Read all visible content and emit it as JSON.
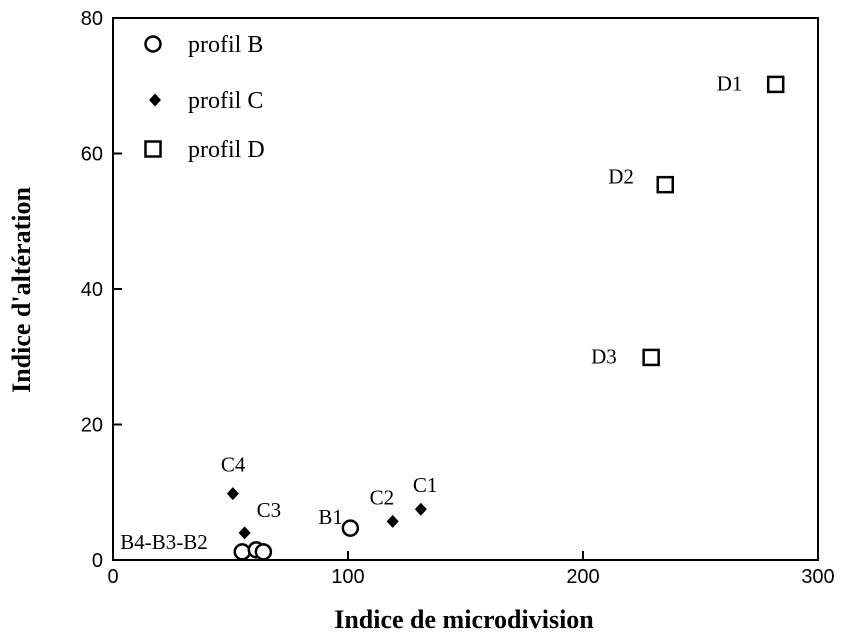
{
  "chart_data": {
    "type": "scatter",
    "title": "",
    "xlabel": "Indice de microdivision",
    "ylabel": "Indice d'altération",
    "xlim": [
      0,
      300
    ],
    "ylim": [
      0,
      80
    ],
    "x_ticks": [
      "0",
      "100",
      "200",
      "300"
    ],
    "y_ticks": [
      "0",
      "20",
      "40",
      "60",
      "80"
    ],
    "grid": false,
    "legend_position": "top-left",
    "series": [
      {
        "name": "profil B",
        "marker": "open-circle",
        "points": [
          {
            "x": 101,
            "y": 4.7,
            "label": "B1"
          },
          {
            "x": 55,
            "y": 1.2,
            "label": "B4-B3-B2"
          },
          {
            "x": 61,
            "y": 1.5,
            "label": ""
          },
          {
            "x": 64,
            "y": 1.2,
            "label": ""
          }
        ]
      },
      {
        "name": "profil C",
        "marker": "filled-diamond",
        "points": [
          {
            "x": 131,
            "y": 7.5,
            "label": "C1"
          },
          {
            "x": 119,
            "y": 5.7,
            "label": "C2"
          },
          {
            "x": 56,
            "y": 4.0,
            "label": "C3"
          },
          {
            "x": 51,
            "y": 9.8,
            "label": "C4"
          }
        ]
      },
      {
        "name": "profil D",
        "marker": "open-square",
        "points": [
          {
            "x": 282,
            "y": 70.2,
            "label": "D1"
          },
          {
            "x": 235,
            "y": 55.4,
            "label": "D2"
          },
          {
            "x": 229,
            "y": 29.9,
            "label": "D3"
          }
        ]
      }
    ]
  }
}
